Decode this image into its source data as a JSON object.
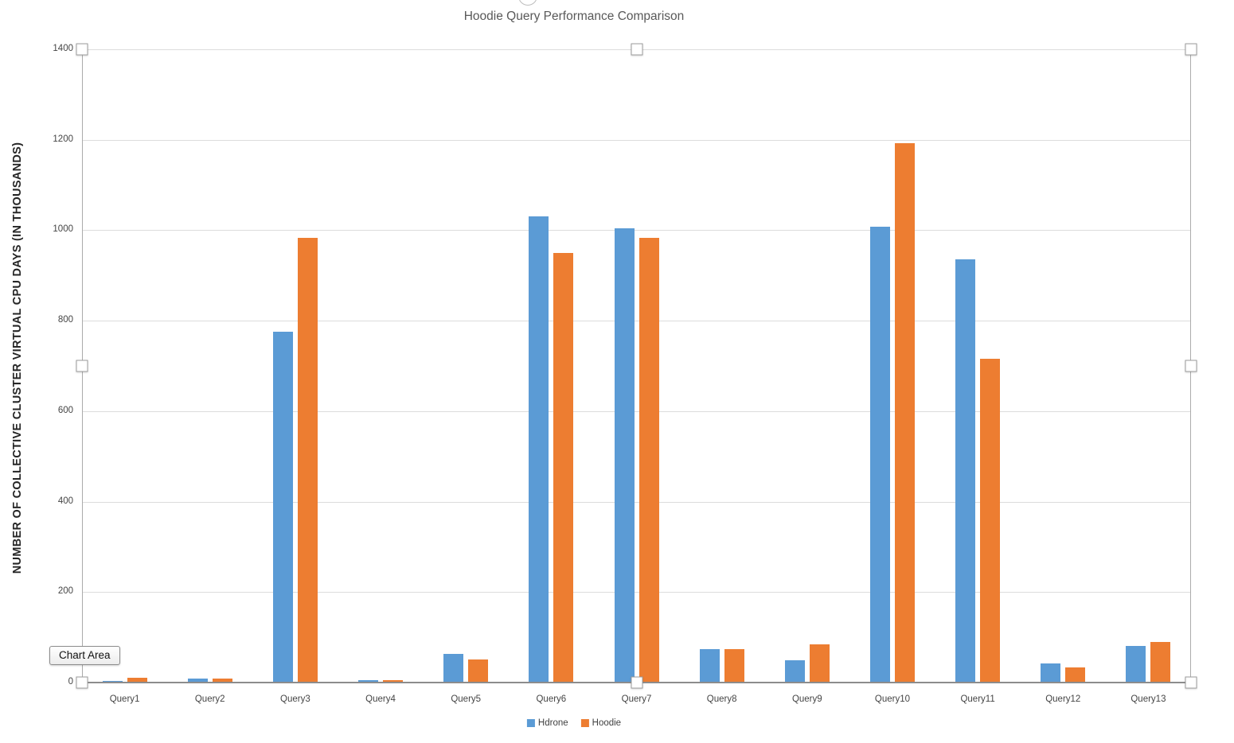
{
  "window": {
    "selection_tooltip": "Chart Area"
  },
  "chart_data": {
    "type": "bar",
    "title": "Hoodie Query Performance Comparison",
    "xlabel": "",
    "ylabel": "NUMBER OF COLLECTIVE CLUSTER VIRTUAL CPU DAYS (IN THOUSANDS)",
    "categories": [
      "Query1",
      "Query2",
      "Query3",
      "Query4",
      "Query5",
      "Query6",
      "Query7",
      "Query8",
      "Query9",
      "Query10",
      "Query11",
      "Query12",
      "Query13"
    ],
    "series": [
      {
        "name": "Hdrone",
        "color": "#5B9BD5",
        "values": [
          4,
          9,
          776,
          5,
          64,
          1030,
          1005,
          74,
          49,
          1008,
          935,
          43,
          81
        ]
      },
      {
        "name": "Hoodie",
        "color": "#ED7D31",
        "values": [
          10,
          9,
          983,
          6,
          51,
          949,
          984,
          74,
          85,
          1193,
          716,
          34,
          89
        ]
      }
    ],
    "ylim": [
      0,
      1400
    ],
    "yticks": [
      0,
      200,
      400,
      600,
      800,
      1000,
      1200,
      1400
    ],
    "grid": true,
    "legend_position": "bottom"
  },
  "colors": {
    "series_hdrone": "#5B9BD5",
    "series_hoodie": "#ED7D31",
    "gridline": "#DCDCDC",
    "axis_line": "#8C8C8C",
    "plot_border": "#ABABAB",
    "title_text": "#595959",
    "tick_text": "#444444"
  }
}
